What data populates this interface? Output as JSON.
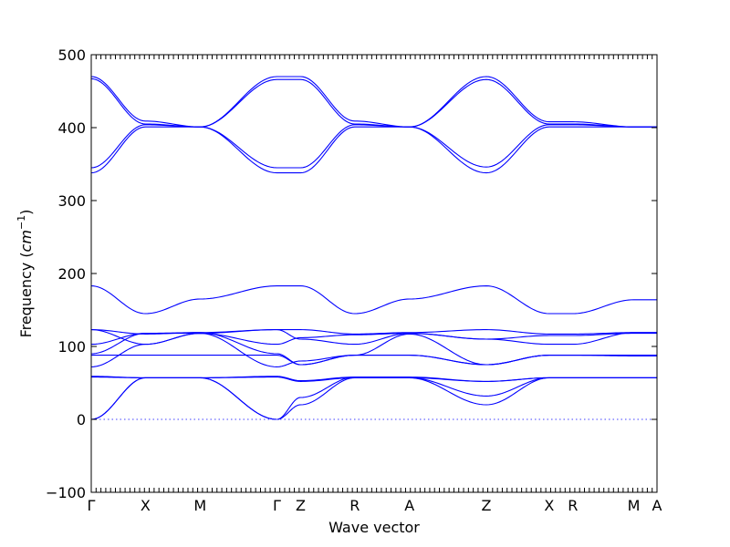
{
  "chart_data": {
    "type": "line",
    "title": "",
    "xlabel": "Wave vector",
    "ylabel": "Frequency (cm⁻¹)",
    "ylabel_main": "Frequency (",
    "ylabel_unit": "cm",
    "ylabel_exp": "−1",
    "ylabel_close": ")",
    "ylim": [
      -100,
      500
    ],
    "yticks": [
      -100,
      0,
      100,
      200,
      300,
      400,
      500
    ],
    "ytick_labels": [
      "−100",
      "0",
      "100",
      "200",
      "300",
      "400",
      "500"
    ],
    "xlim": [
      0,
      11.7
    ],
    "high_symmetry_points": [
      {
        "label": "Γ",
        "x": 0.0
      },
      {
        "label": "X",
        "x": 1.12
      },
      {
        "label": "M",
        "x": 2.25
      },
      {
        "label": "Γ",
        "x": 3.84
      },
      {
        "label": "Z",
        "x": 4.33
      },
      {
        "label": "R",
        "x": 5.45
      },
      {
        "label": "A",
        "x": 6.58
      },
      {
        "label": "Z",
        "x": 8.17
      },
      {
        "label": "X",
        "x": 9.47
      },
      {
        "label": "R",
        "x": 9.96
      },
      {
        "label": "M",
        "x": 11.22
      },
      {
        "label": "A",
        "x": 11.7
      }
    ],
    "zero_reference_line": 0,
    "line_color": "#0000ff",
    "series": [
      {
        "values": [
          470,
          409,
          401,
          470,
          470,
          409,
          401,
          470,
          408,
          408,
          401,
          401
        ]
      },
      {
        "values": [
          467,
          405,
          401,
          466,
          466,
          405,
          401,
          466,
          405,
          405,
          401,
          401
        ]
      },
      {
        "values": [
          345,
          404,
          401,
          345,
          345,
          404,
          401,
          346,
          404,
          404,
          401,
          401
        ]
      },
      {
        "values": [
          338,
          401,
          401,
          338,
          338,
          401,
          401,
          338,
          401,
          401,
          401,
          401
        ]
      },
      {
        "values": [
          183,
          145,
          165,
          183,
          183,
          145,
          165,
          183,
          145,
          145,
          164,
          164
        ]
      },
      {
        "values": [
          123,
          117,
          119,
          123,
          123,
          117,
          119,
          123,
          117,
          117,
          119,
          119
        ]
      },
      {
        "values": [
          123,
          103,
          118,
          103,
          112,
          116,
          118,
          110,
          115,
          115,
          118,
          118
        ]
      },
      {
        "values": [
          103,
          118,
          118,
          123,
          110,
          103,
          118,
          110,
          103,
          103,
          119,
          119
        ]
      },
      {
        "values": [
          90,
          118,
          119,
          90,
          75,
          88,
          88,
          75,
          88,
          88,
          88,
          88
        ]
      },
      {
        "values": [
          88,
          88,
          88,
          88,
          75,
          88,
          88,
          75,
          88,
          88,
          88,
          88
        ]
      },
      {
        "values": [
          72,
          103,
          118,
          72,
          80,
          88,
          117,
          75,
          88,
          88,
          87,
          87
        ]
      },
      {
        "values": [
          59,
          57,
          57,
          59,
          53,
          58,
          58,
          52,
          57,
          57,
          57,
          57
        ]
      },
      {
        "values": [
          58,
          57,
          57,
          58,
          52,
          57,
          57,
          52,
          57,
          57,
          57,
          57
        ]
      },
      {
        "values": [
          0,
          57,
          57,
          0,
          30,
          58,
          57,
          32,
          57,
          57,
          57,
          57
        ]
      },
      {
        "values": [
          0,
          57,
          57,
          0,
          20,
          57,
          57,
          20,
          57,
          57,
          57,
          57
        ]
      }
    ]
  }
}
